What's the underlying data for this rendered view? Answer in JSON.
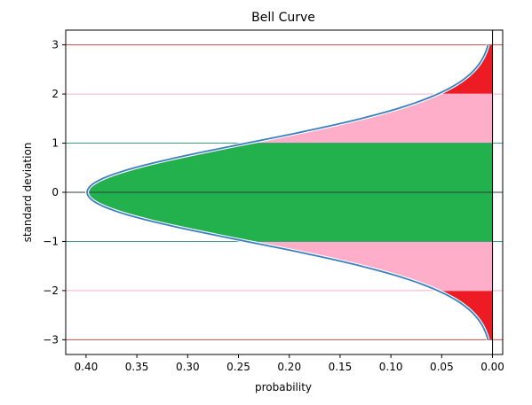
{
  "chart_data": {
    "type": "area",
    "title": "Bell Curve",
    "xlabel": "probability",
    "ylabel": "standard deviation",
    "xlim": [
      0.42,
      -0.01
    ],
    "ylim": [
      -3.3,
      3.3
    ],
    "x_inverted": true,
    "xticks": [
      0.4,
      0.35,
      0.3,
      0.25,
      0.2,
      0.15,
      0.1,
      0.05,
      0.0
    ],
    "xtick_labels": [
      "0.40",
      "0.35",
      "0.30",
      "0.25",
      "0.20",
      "0.15",
      "0.10",
      "0.05",
      "0.00"
    ],
    "yticks": [
      3,
      2,
      1,
      0,
      -1,
      -2,
      -3
    ],
    "ytick_labels": [
      "3",
      "2",
      "1",
      "0",
      "−1",
      "−2",
      "−3"
    ],
    "curve": {
      "function": "normal_pdf",
      "mean": 0,
      "sd": 1,
      "y_range": [
        -3,
        3
      ],
      "color": "#3a7fc1"
    },
    "bands": [
      {
        "from": -1,
        "to": 1,
        "color": "#22b14c",
        "x_extent": "curve"
      },
      {
        "from": 1,
        "to": 2,
        "color": "#ffaec9",
        "x_extent": "curve"
      },
      {
        "from": -2,
        "to": -1,
        "color": "#ffaec9",
        "x_extent": "curve"
      },
      {
        "from": 2,
        "to": 3,
        "color": "#ed1c24",
        "x_extent": "curve"
      },
      {
        "from": -3,
        "to": -2,
        "color": "#ed1c24",
        "x_extent": "curve"
      }
    ],
    "hlines": [
      {
        "y": 3,
        "color": "#c0504d"
      },
      {
        "y": 2,
        "color": "#ffaec9"
      },
      {
        "y": 1,
        "color": "#3aa57a"
      },
      {
        "y": 0,
        "color": "#2f3f3a"
      },
      {
        "y": -1,
        "color": "#3aa57a"
      },
      {
        "y": -2,
        "color": "#ffaec9"
      },
      {
        "y": -3,
        "color": "#c0504d"
      }
    ],
    "vline": {
      "x": 0,
      "color": "#000000"
    },
    "grid": false,
    "legend": "none"
  }
}
